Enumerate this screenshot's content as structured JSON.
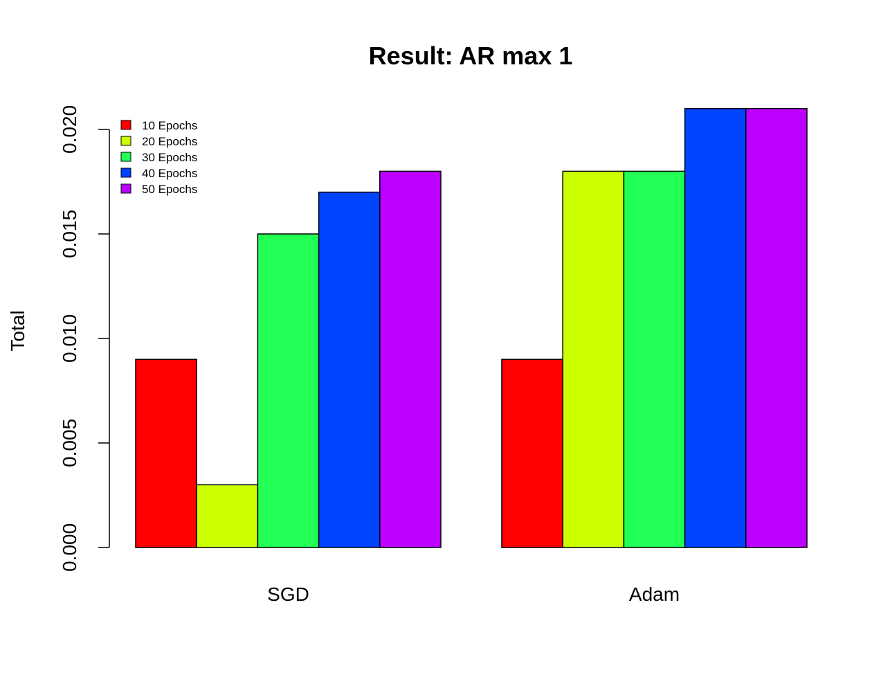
{
  "chart_data": {
    "type": "bar",
    "title": "Result: AR max 1",
    "xlabel": "",
    "ylabel": "Total",
    "categories": [
      "SGD",
      "Adam"
    ],
    "series": [
      {
        "name": "10 Epochs",
        "color": "#ff0000",
        "values": [
          0.009,
          0.009
        ]
      },
      {
        "name": "20 Epochs",
        "color": "#ccff00",
        "values": [
          0.003,
          0.018
        ]
      },
      {
        "name": "30 Epochs",
        "color": "#22ff55",
        "values": [
          0.015,
          0.018
        ]
      },
      {
        "name": "40 Epochs",
        "color": "#0044ff",
        "values": [
          0.017,
          0.021
        ]
      },
      {
        "name": "50 Epochs",
        "color": "#bb00ff",
        "values": [
          0.018,
          0.021
        ]
      }
    ],
    "yticks": [
      "0.000",
      "0.005",
      "0.010",
      "0.015",
      "0.020"
    ],
    "ylim": [
      0,
      0.021
    ],
    "grid": false,
    "legend_position": "top-left"
  }
}
